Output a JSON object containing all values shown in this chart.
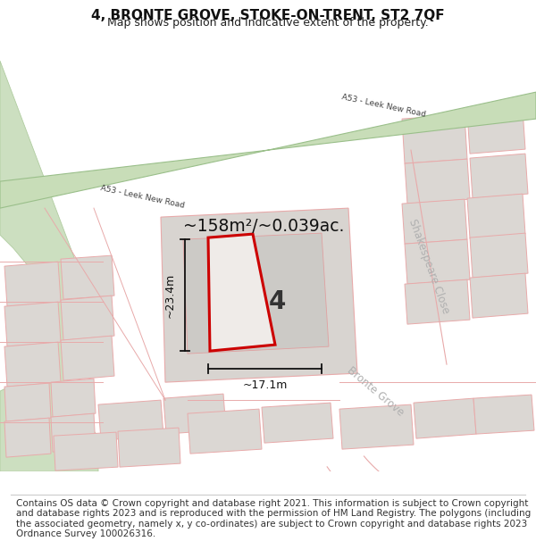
{
  "title": "4, BRONTE GROVE, STOKE-ON-TRENT, ST2 7QF",
  "subtitle": "Map shows position and indicative extent of the property.",
  "footer": "Contains OS data © Crown copyright and database right 2021. This information is subject to Crown copyright and database rights 2023 and is reproduced with the permission of HM Land Registry. The polygons (including the associated geometry, namely x, y co-ordinates) are subject to Crown copyright and database rights 2023 Ordnance Survey 100026316.",
  "area_text": "~158m²/~0.039ac.",
  "dim_width": "~17.1m",
  "dim_height": "~23.4m",
  "property_number": "4",
  "map_bg": "#f0ece8",
  "road_green_fill": "#c8ddb8",
  "road_green_edge": "#9abf8a",
  "plot_fill": "#ddd9d5",
  "plot_edge_pink": "#f0aaaa",
  "plot_outline_red": "#cc0000",
  "green_park_fill": "#ccdfc0",
  "green_park_edge": "#b0cca0",
  "road_label_color": "#444444",
  "street_label_color": "#aaaaaa",
  "title_fontsize": 11,
  "subtitle_fontsize": 9,
  "footer_fontsize": 7.5
}
